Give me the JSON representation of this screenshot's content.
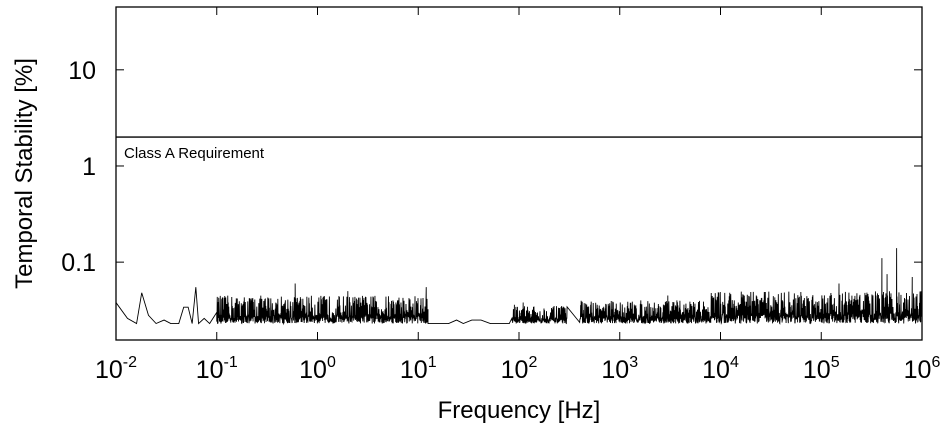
{
  "chart_data": {
    "type": "line",
    "title": "",
    "xlabel": "Frequency [Hz]",
    "ylabel": "Temporal Stability [%]",
    "xscale": "log",
    "yscale": "log",
    "xlim": [
      0.01,
      1000000
    ],
    "ylim": [
      0.0155,
      45
    ],
    "grid": false,
    "x_ticks": [
      {
        "base": "10",
        "exp": "-2",
        "value": 0.01
      },
      {
        "base": "10",
        "exp": "-1",
        "value": 0.1
      },
      {
        "base": "10",
        "exp": "0",
        "value": 1
      },
      {
        "base": "10",
        "exp": "1",
        "value": 10
      },
      {
        "base": "10",
        "exp": "2",
        "value": 100
      },
      {
        "base": "10",
        "exp": "3",
        "value": 1000
      },
      {
        "base": "10",
        "exp": "4",
        "value": 10000
      },
      {
        "base": "10",
        "exp": "5",
        "value": 100000
      },
      {
        "base": "10",
        "exp": "6",
        "value": 1000000
      }
    ],
    "y_ticks": [
      {
        "label": "0.1",
        "value": 0.1
      },
      {
        "label": "1",
        "value": 1
      },
      {
        "label": "10",
        "value": 10
      }
    ],
    "reference_line": {
      "label": "Class A Requirement",
      "value": 2.0
    },
    "series": [
      {
        "style": "noise",
        "baseline": 0.023,
        "points": [
          [
            0.01,
            0.038
          ],
          [
            0.013,
            0.026
          ],
          [
            0.016,
            0.023
          ],
          [
            0.018,
            0.048
          ],
          [
            0.021,
            0.028
          ],
          [
            0.025,
            0.023
          ],
          [
            0.03,
            0.025
          ],
          [
            0.035,
            0.023
          ],
          [
            0.042,
            0.023
          ],
          [
            0.047,
            0.034
          ],
          [
            0.052,
            0.034
          ],
          [
            0.057,
            0.023
          ],
          [
            0.062,
            0.055
          ],
          [
            0.066,
            0.023
          ],
          [
            0.075,
            0.026
          ],
          [
            0.085,
            0.023
          ],
          [
            0.1,
            0.03
          ],
          [
            0.11,
            0.023
          ],
          [
            0.13,
            0.038
          ],
          [
            0.16,
            0.025
          ]
        ],
        "bands": [
          {
            "from": 0.1,
            "to": 12.5,
            "peak": 0.045,
            "spikes": [
              [
                0.6,
                0.06
              ],
              [
                2.0,
                0.05
              ],
              [
                12.0,
                0.055
              ]
            ]
          },
          {
            "from": 85,
            "to": 300,
            "peak": 0.035,
            "spikes": [
              [
                90,
                0.036
              ],
              [
                110,
                0.038
              ]
            ]
          },
          {
            "from": 400,
            "to": 8000,
            "peak": 0.04,
            "spikes": [
              [
                3000,
                0.045
              ]
            ]
          },
          {
            "from": 8000,
            "to": 1000000,
            "peak": 0.05,
            "spikes": [
              [
                400000,
                0.11
              ],
              [
                450000,
                0.075
              ],
              [
                560000,
                0.14
              ],
              [
                150000,
                0.06
              ],
              [
                800000,
                0.07
              ]
            ]
          }
        ],
        "quiet": [
          [
            12.5,
            0.023
          ],
          [
            20,
            0.023
          ],
          [
            24,
            0.025
          ],
          [
            28,
            0.023
          ],
          [
            34,
            0.025
          ],
          [
            42,
            0.025
          ],
          [
            52,
            0.023
          ],
          [
            80,
            0.023
          ]
        ]
      }
    ]
  }
}
